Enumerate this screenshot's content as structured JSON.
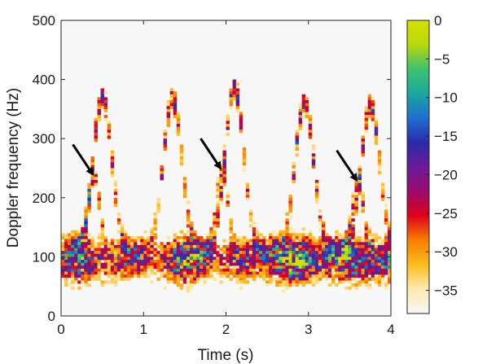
{
  "chart_data": {
    "type": "heatmap",
    "title": "",
    "xlabel": "Time (s)",
    "ylabel": "Doppler frequency (Hz)",
    "xlim": [
      0,
      4
    ],
    "ylim": [
      0,
      500
    ],
    "x_ticks": [
      "0",
      "1",
      "2",
      "3",
      "4"
    ],
    "y_ticks": [
      "0",
      "100",
      "200",
      "300",
      "400",
      "500"
    ],
    "colorbar": {
      "range": [
        -38,
        0
      ],
      "ticks": [
        "0",
        "−5",
        "−10",
        "−15",
        "−20",
        "−25",
        "−30",
        "−35"
      ],
      "tick_values": [
        0,
        -5,
        -10,
        -15,
        -20,
        -25,
        -30,
        -35
      ],
      "colormap": [
        "#f7f7f7",
        "#ffe9b0",
        "#fbbd1c",
        "#f77f00",
        "#e0001b",
        "#9b0a6b",
        "#6a1b9a",
        "#2a2aa7",
        "#1f6fd0",
        "#1aa89d",
        "#3cc26d",
        "#b9d80d",
        "#d6e000"
      ]
    },
    "gait_cycles": [
      {
        "peak_time": 0.5,
        "peak_doppler": 370,
        "marked_time": 0.4,
        "marked_doppler": 235
      },
      {
        "peak_time": 1.35,
        "peak_doppler": 365
      },
      {
        "peak_time": 2.1,
        "peak_doppler": 385,
        "marked_time": 1.95,
        "marked_doppler": 245
      },
      {
        "peak_time": 2.95,
        "peak_doppler": 360
      },
      {
        "peak_time": 3.75,
        "peak_doppler": 355,
        "marked_time": 3.6,
        "marked_doppler": 225
      }
    ],
    "background_level": -38,
    "annotations": [
      {
        "type": "arrow",
        "x": 0.4,
        "y": 235
      },
      {
        "type": "arrow",
        "x": 1.95,
        "y": 245
      },
      {
        "type": "arrow",
        "x": 3.6,
        "y": 225
      }
    ]
  }
}
